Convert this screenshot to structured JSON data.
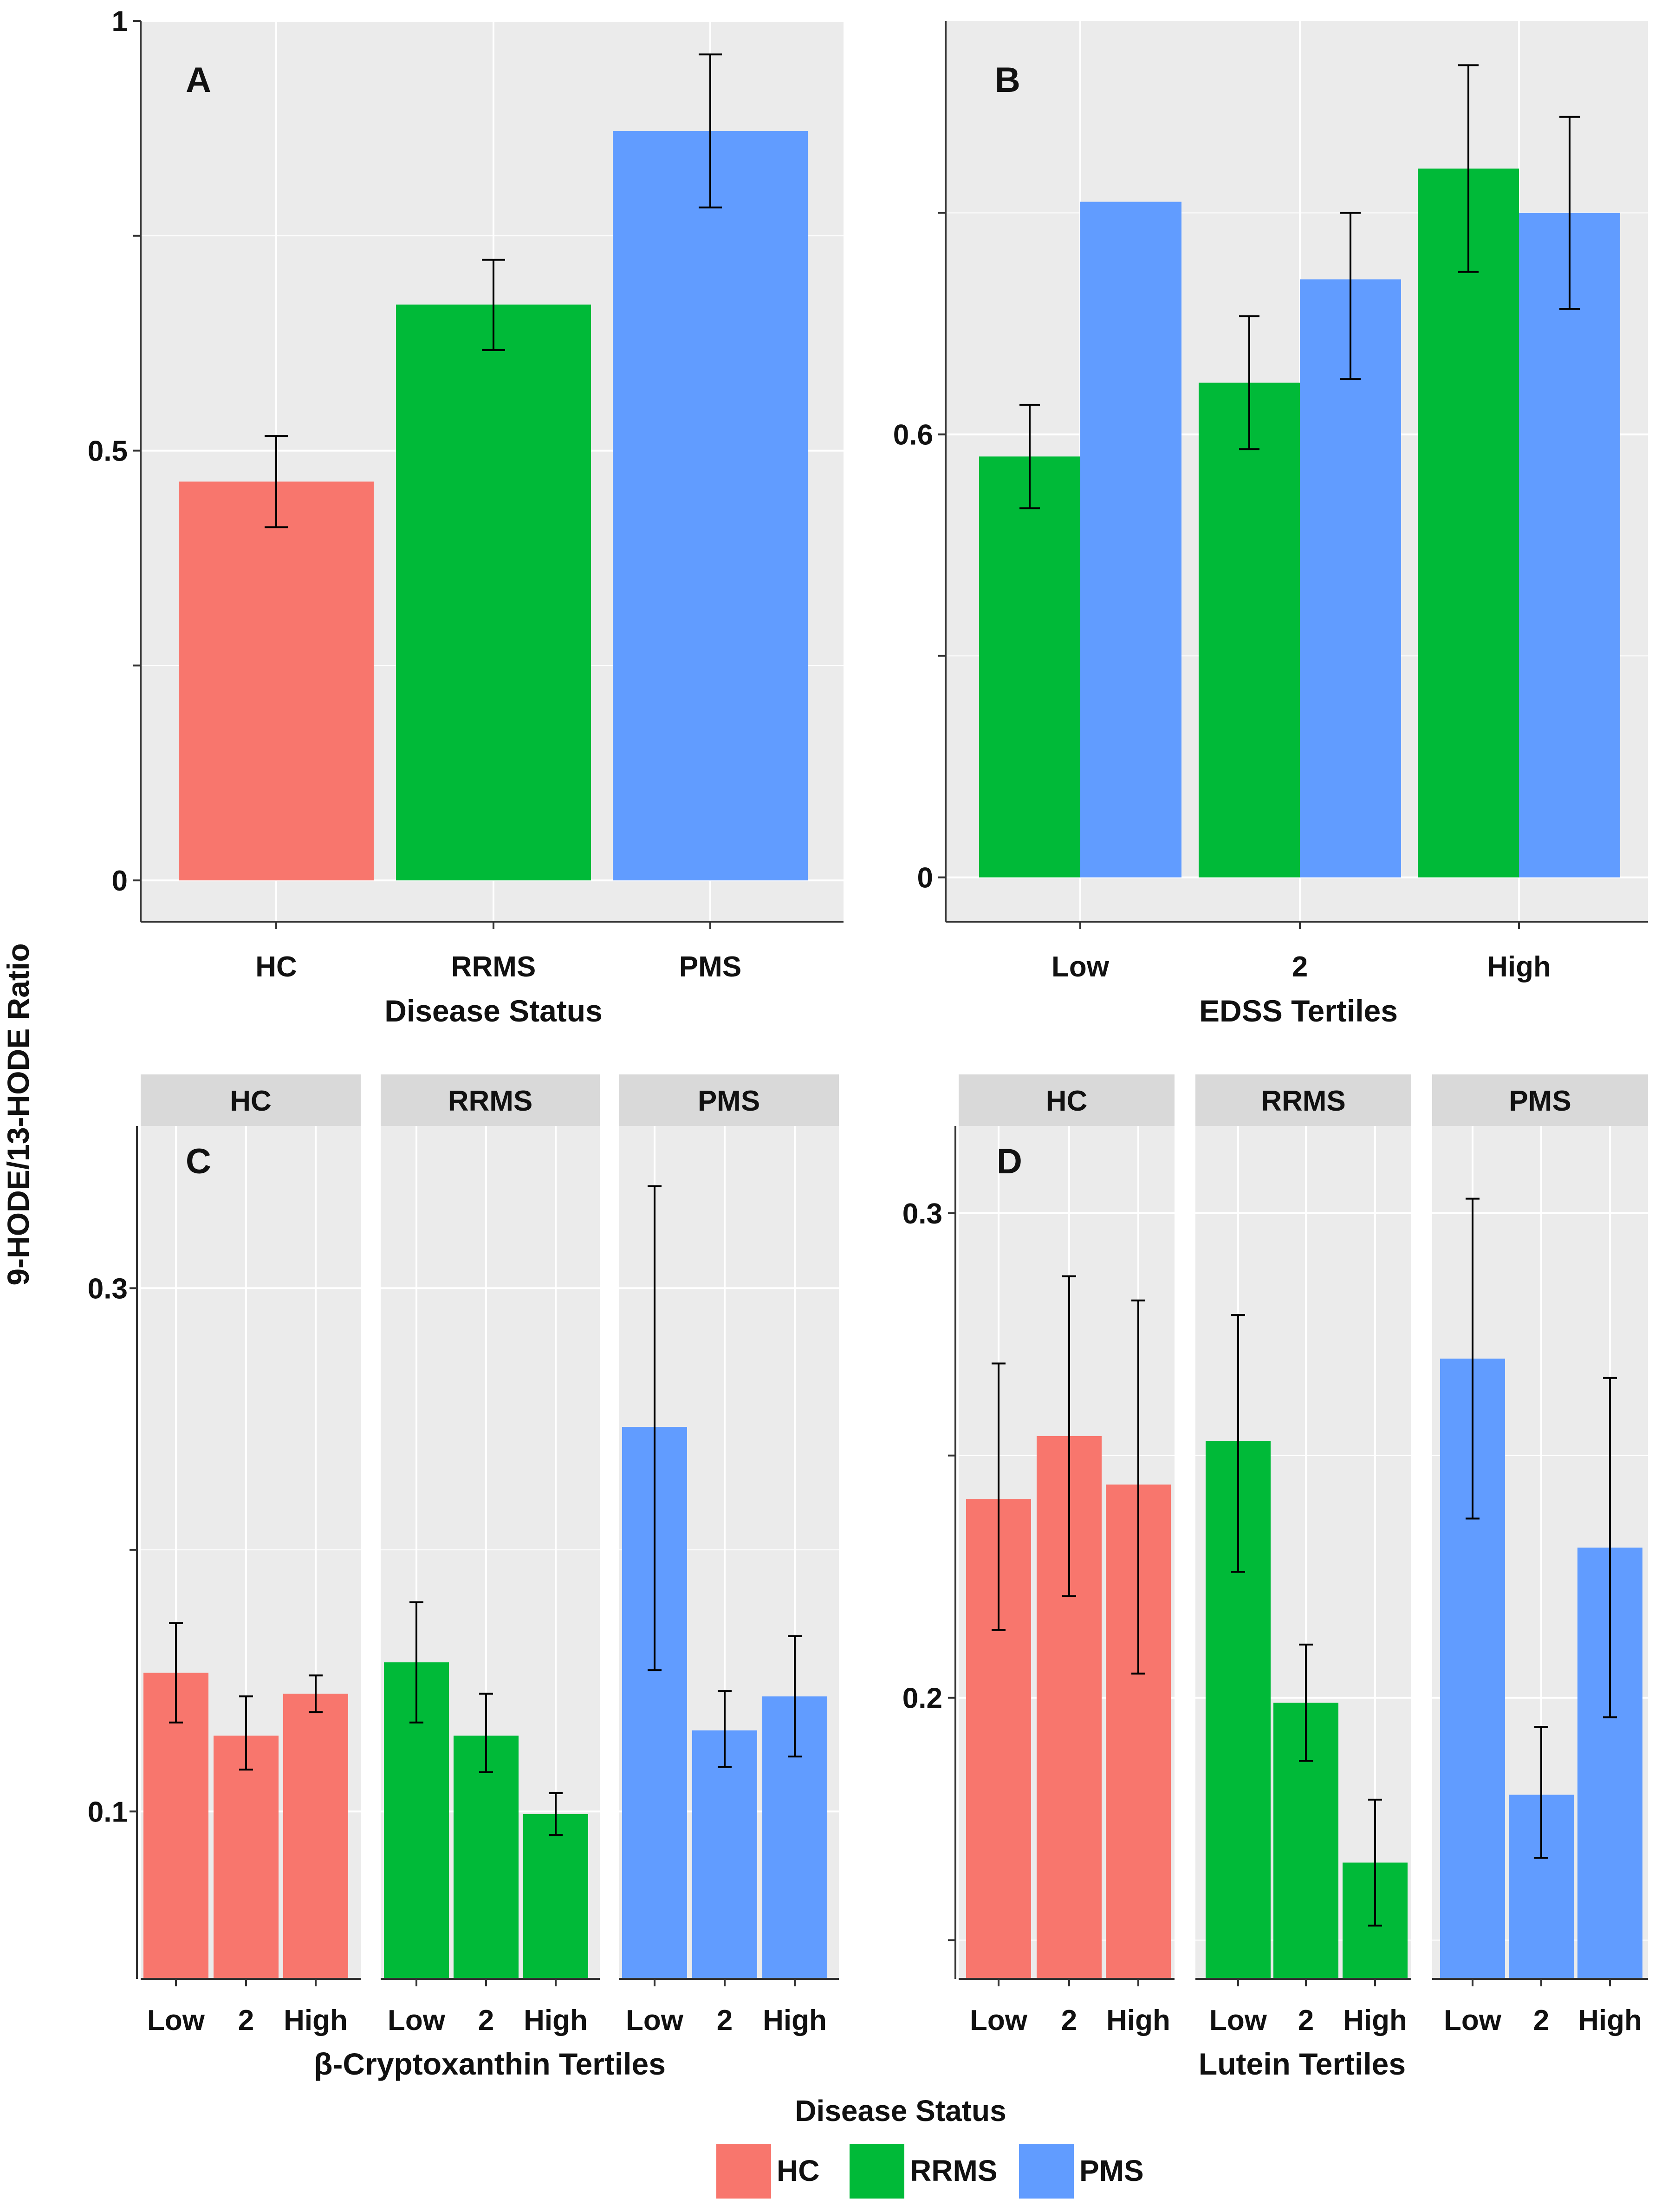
{
  "figure": {
    "y_axis_title": "9-HODE/13-HODE Ratio",
    "legend": {
      "title": "Disease Status",
      "items": [
        {
          "label": "HC",
          "color": "#F8766D"
        },
        {
          "label": "RRMS",
          "color": "#00BA38"
        },
        {
          "label": "PMS",
          "color": "#619CFF"
        }
      ]
    }
  },
  "chart_data": [
    {
      "panel": "A",
      "type": "bar",
      "xlabel": "Disease Status",
      "categories": [
        "HC",
        "RRMS",
        "PMS"
      ],
      "values": [
        0.464,
        0.67,
        0.872
      ],
      "error_low": [
        0.411,
        0.617,
        0.783
      ],
      "error_high": [
        0.517,
        0.722,
        0.961
      ],
      "colors": [
        "#F8766D",
        "#00BA38",
        "#619CFF"
      ],
      "ylim": [
        -0.048,
        1.0
      ],
      "yticks": [
        0,
        0.5,
        1
      ],
      "ytick_labels": [
        "0",
        "0.5",
        "1"
      ],
      "minor_ticks": [
        0.25,
        0.75
      ]
    },
    {
      "panel": "B",
      "type": "bar",
      "xlabel": "EDSS Tertiles",
      "categories": [
        "Low",
        "2",
        "High"
      ],
      "series": [
        {
          "name": "RRMS",
          "color": "#00BA38",
          "values": [
            0.57,
            0.67,
            0.96
          ],
          "error_low": [
            0.5,
            0.58,
            0.82
          ],
          "error_high": [
            0.64,
            0.76,
            1.1
          ]
        },
        {
          "name": "PMS",
          "color": "#619CFF",
          "values": [
            0.915,
            0.81,
            0.9
          ],
          "error_low": null,
          "error_high": [
            null,
            0.9,
            1.03
          ]
        }
      ],
      "pms_error_low": [
        null,
        0.675,
        0.77
      ],
      "ylim": [
        -0.06,
        1.16
      ],
      "yticks": [
        0,
        0.6
      ],
      "ytick_labels": [
        "0",
        "0.6"
      ],
      "minor_ticks": [
        0.3,
        0.9
      ]
    },
    {
      "panel": "C",
      "type": "bar",
      "xlabel": "β-Cryptoxanthin Tertiles",
      "facets": [
        "HC",
        "RRMS",
        "PMS"
      ],
      "categories": [
        "Low",
        "2",
        "High"
      ],
      "series": [
        {
          "name": "HC",
          "color": "#F8766D",
          "values": [
            0.153,
            0.129,
            0.145
          ],
          "error_low": [
            0.134,
            0.116,
            0.138
          ],
          "error_high": [
            0.172,
            0.144,
            0.152
          ]
        },
        {
          "name": "RRMS",
          "color": "#00BA38",
          "values": [
            0.157,
            0.129,
            0.099
          ],
          "error_low": [
            0.134,
            0.115,
            0.091
          ],
          "error_high": [
            0.18,
            0.145,
            0.107
          ]
        },
        {
          "name": "PMS",
          "color": "#619CFF",
          "values": [
            0.247,
            0.131,
            0.144
          ],
          "error_low": [
            0.154,
            0.117,
            0.121
          ],
          "error_high": [
            0.339,
            0.146,
            0.167
          ]
        }
      ],
      "ylim": [
        0.036,
        0.362
      ],
      "yticks": [
        0.1,
        0.3
      ],
      "ytick_labels": [
        "0.1",
        "0.3"
      ],
      "minor_ticks": [
        0.2
      ]
    },
    {
      "panel": "D",
      "type": "bar",
      "xlabel": "Lutein Tertiles",
      "facets": [
        "HC",
        "RRMS",
        "PMS"
      ],
      "categories": [
        "Low",
        "2",
        "High"
      ],
      "series": [
        {
          "name": "HC",
          "color": "#F8766D",
          "values": [
            0.241,
            0.254,
            0.244
          ],
          "error_low": [
            0.214,
            0.221,
            0.205
          ],
          "error_high": [
            0.269,
            0.287,
            0.282
          ]
        },
        {
          "name": "RRMS",
          "color": "#00BA38",
          "values": [
            0.253,
            0.199,
            0.166
          ],
          "error_low": [
            0.226,
            0.187,
            0.153
          ],
          "error_high": [
            0.279,
            0.211,
            0.179
          ]
        },
        {
          "name": "PMS",
          "color": "#619CFF",
          "values": [
            0.27,
            0.18,
            0.231
          ],
          "error_low": [
            0.237,
            0.167,
            0.196
          ],
          "error_high": [
            0.303,
            0.194,
            0.266
          ]
        }
      ],
      "ylim": [
        0.142,
        0.318
      ],
      "yticks": [
        0.2,
        0.3
      ],
      "ytick_labels": [
        "0.2",
        "0.3"
      ],
      "minor_ticks": [
        0.15,
        0.25
      ]
    }
  ]
}
